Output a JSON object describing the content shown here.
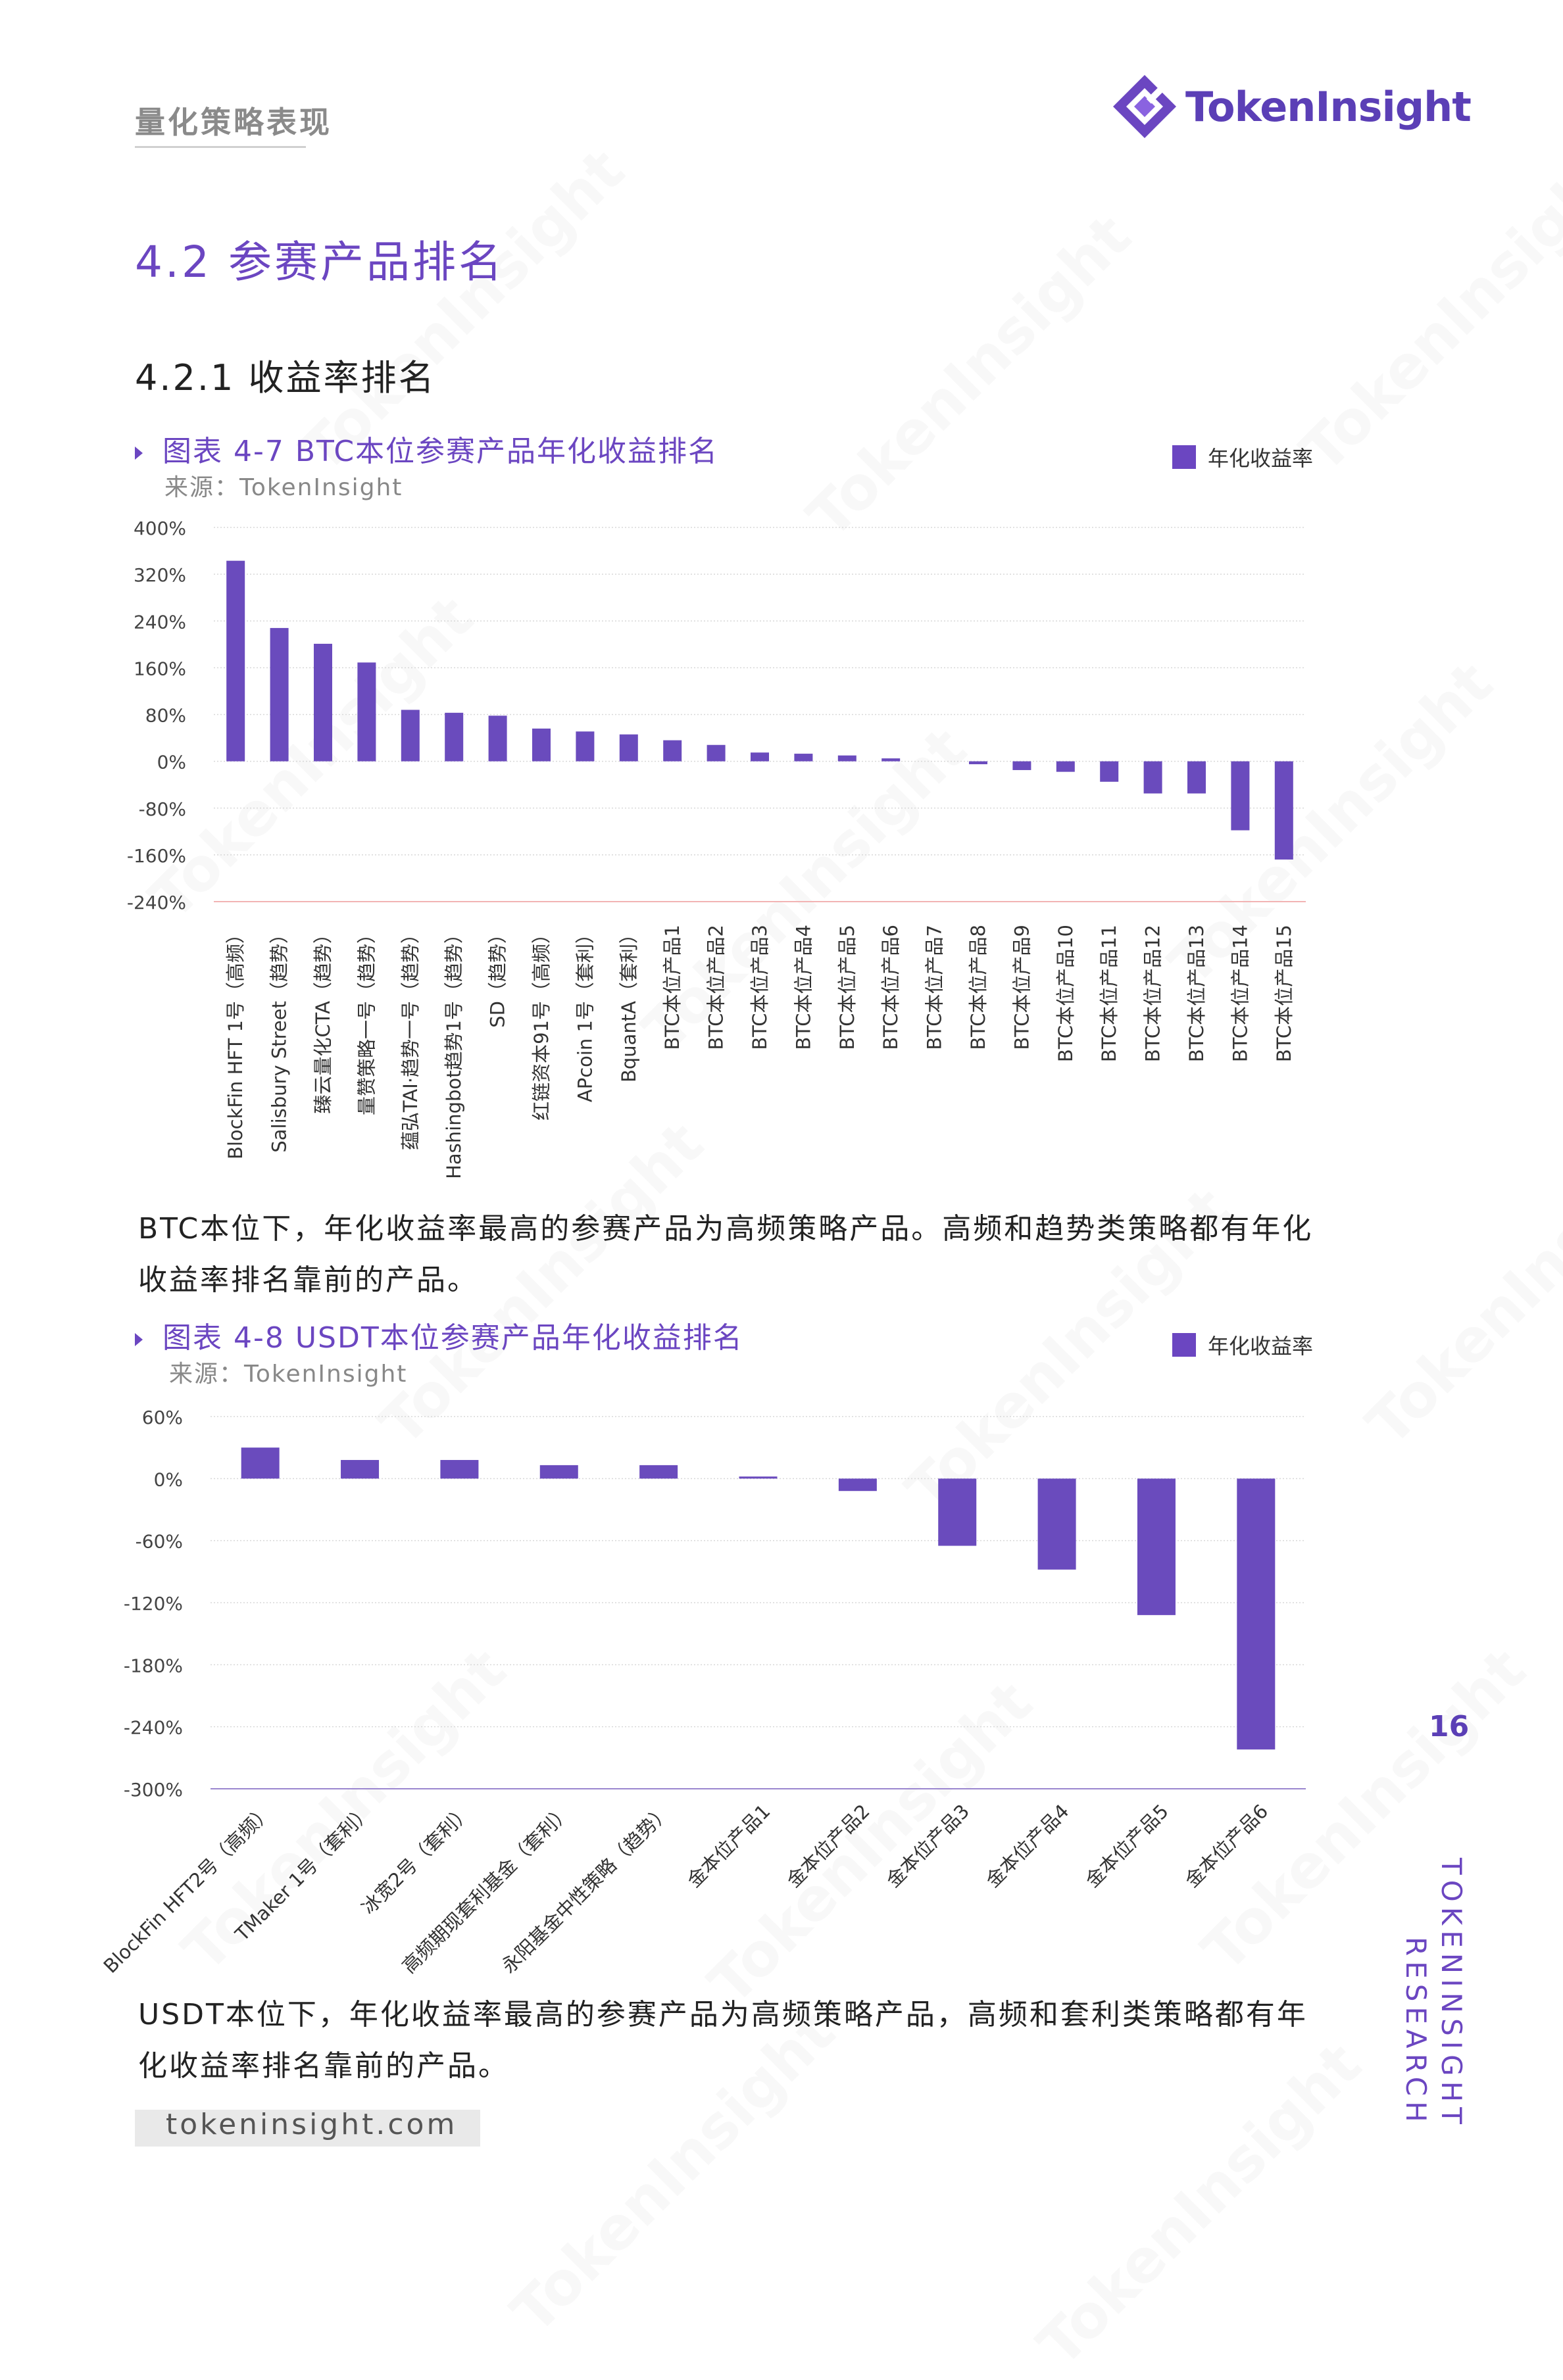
{
  "header": {
    "title": "量化策略表现",
    "logo_text": "TokenInsight"
  },
  "section": {
    "title": "4.2 参赛产品排名",
    "subsection": "4.2.1 收益率排名"
  },
  "figures": [
    {
      "caption": "图表 4-7 BTC本位参赛产品年化收益排名",
      "source": "来源：TokenInsight",
      "legend": "年化收益率"
    },
    {
      "caption": "图表 4-8 USDT本位参赛产品年化收益排名",
      "source": "来源：TokenInsight",
      "legend": "年化收益率"
    }
  ],
  "paragraphs": {
    "p1": "BTC本位下，年化收益率最高的参赛产品为高频策略产品。高频和趋势类策略都有年化收益率排名靠前的产品。",
    "p2": "USDT本位下，年化收益率最高的参赛产品为高频策略产品，高频和套利类策略都有年化收益率排名靠前的产品。"
  },
  "page_number": "16",
  "side_brand": {
    "line1": "TOKENINSIGHT",
    "line2": "RESEARCH"
  },
  "footer": {
    "url": "tokeninsight.com"
  },
  "watermark": "TokenInsight",
  "colors": {
    "accent": "#6b46c1",
    "bar": "#6a4bbd",
    "grid": "#d8d8d8"
  },
  "chart_data": [
    {
      "type": "bar",
      "categories": [
        "BlockFin HFT 1号（高频）",
        "Salisbury Street（趋势）",
        "臻云量化CTA（趋势）",
        "量赞策略一号（趋势）",
        "蕴弘TAI·趋势一号（趋势）",
        "Hashingbot趋势1号（趋势）",
        "SD（趋势）",
        "红链资本91号（高频）",
        "APcoin 1号（套利）",
        "BquantA（套利）",
        "BTC本位产品1",
        "BTC本位产品2",
        "BTC本位产品3",
        "BTC本位产品4",
        "BTC本位产品5",
        "BTC本位产品6",
        "BTC本位产品7",
        "BTC本位产品8",
        "BTC本位产品9",
        "BTC本位产品10",
        "BTC本位产品11",
        "BTC本位产品12",
        "BTC本位产品13",
        "BTC本位产品14",
        "BTC本位产品15"
      ],
      "series": [
        {
          "name": "年化收益率",
          "values": [
            343,
            228,
            201,
            169,
            88,
            83,
            78,
            56,
            51,
            46,
            36,
            28,
            15,
            13,
            10,
            5,
            0,
            -5,
            -15,
            -18,
            -35,
            -55,
            -55,
            -118,
            -168
          ]
        }
      ],
      "ylim": [
        -240,
        400
      ],
      "yticks": [
        "400%",
        "320%",
        "240%",
        "160%",
        "80%",
        "0%",
        "-80%",
        "-160%",
        "-240%"
      ],
      "ytick_values": [
        400,
        320,
        240,
        160,
        80,
        0,
        -80,
        -160,
        -240
      ],
      "grid": true,
      "legend_position": "top-right"
    },
    {
      "type": "bar",
      "categories": [
        "BlockFin HFT2号（高频）",
        "TMaker 1号（套利）",
        "冰宽2号（套利）",
        "高频期现套利基金（套利）",
        "永阳基金中性策略（趋势）",
        "金本位产品1",
        "金本位产品2",
        "金本位产品3",
        "金本位产品4",
        "金本位产品5",
        "金本位产品6"
      ],
      "series": [
        {
          "name": "年化收益率",
          "values": [
            30,
            18,
            18,
            13,
            13,
            2,
            -12,
            -65,
            -88,
            -132,
            -262
          ]
        }
      ],
      "ylim": [
        -300,
        60
      ],
      "yticks": [
        "60%",
        "0%",
        "-60%",
        "-120%",
        "-180%",
        "-240%",
        "-300%"
      ],
      "ytick_values": [
        60,
        0,
        -60,
        -120,
        -180,
        -240,
        -300
      ],
      "grid": true,
      "legend_position": "top-right"
    }
  ]
}
